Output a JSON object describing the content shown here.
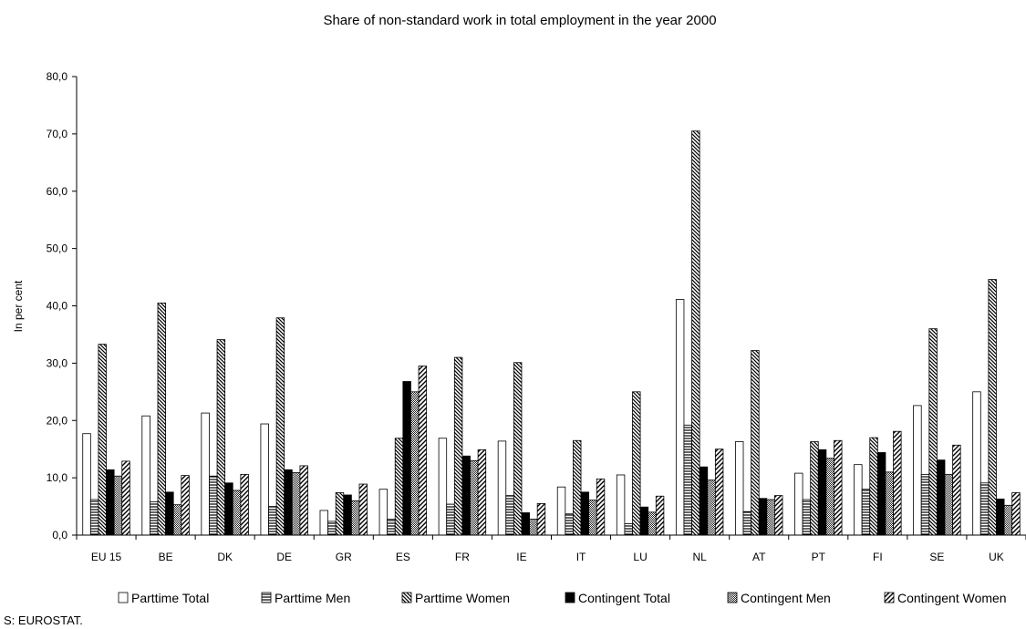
{
  "chart_data": {
    "type": "bar",
    "title": "Share of non-standard work in total employment in the year 2000",
    "ylabel": "In per cent",
    "xlabel": "",
    "ylim": [
      0,
      80
    ],
    "yticks": [
      "0,0",
      "10,0",
      "20,0",
      "30,0",
      "40,0",
      "50,0",
      "60,0",
      "70,0",
      "80,0"
    ],
    "categories": [
      "EU 15",
      "BE",
      "DK",
      "DE",
      "GR",
      "ES",
      "FR",
      "IE",
      "IT",
      "LU",
      "NL",
      "AT",
      "PT",
      "FI",
      "SE",
      "UK"
    ],
    "series": [
      {
        "name": "Parttime Total",
        "pattern": "white",
        "values": [
          17.7,
          20.8,
          21.3,
          19.4,
          4.3,
          8.0,
          16.9,
          16.4,
          8.4,
          10.5,
          41.1,
          16.3,
          10.8,
          12.3,
          22.6,
          25.0
        ]
      },
      {
        "name": "Parttime Men",
        "pattern": "hlines",
        "values": [
          6.2,
          5.8,
          10.3,
          5.0,
          2.4,
          2.8,
          5.4,
          6.9,
          3.7,
          2.0,
          19.2,
          4.1,
          6.2,
          8.0,
          10.6,
          9.1
        ]
      },
      {
        "name": "Parttime Women",
        "pattern": "dense-back-diag",
        "values": [
          33.3,
          40.5,
          34.1,
          37.9,
          7.4,
          16.9,
          31.0,
          30.1,
          16.5,
          25.0,
          70.5,
          32.2,
          16.3,
          17.0,
          36.0,
          44.6
        ]
      },
      {
        "name": "Contingent Total",
        "pattern": "black",
        "values": [
          11.4,
          7.5,
          9.1,
          11.4,
          7.0,
          26.8,
          13.8,
          3.9,
          7.5,
          4.9,
          11.9,
          6.4,
          14.9,
          14.4,
          13.1,
          6.3
        ]
      },
      {
        "name": "Contingent Men",
        "pattern": "checker",
        "values": [
          10.3,
          5.3,
          7.8,
          10.9,
          6.0,
          25.0,
          13.0,
          2.8,
          6.1,
          4.0,
          9.6,
          6.2,
          13.4,
          11.0,
          10.6,
          5.2
        ]
      },
      {
        "name": "Contingent Women",
        "pattern": "fwd-diag",
        "values": [
          12.9,
          10.4,
          10.6,
          12.1,
          8.9,
          29.5,
          14.9,
          5.5,
          9.8,
          6.8,
          15.0,
          6.9,
          16.5,
          18.1,
          15.7,
          7.4
        ]
      }
    ],
    "grid": false,
    "legend": "bottom"
  },
  "source": "S: EUROSTAT."
}
